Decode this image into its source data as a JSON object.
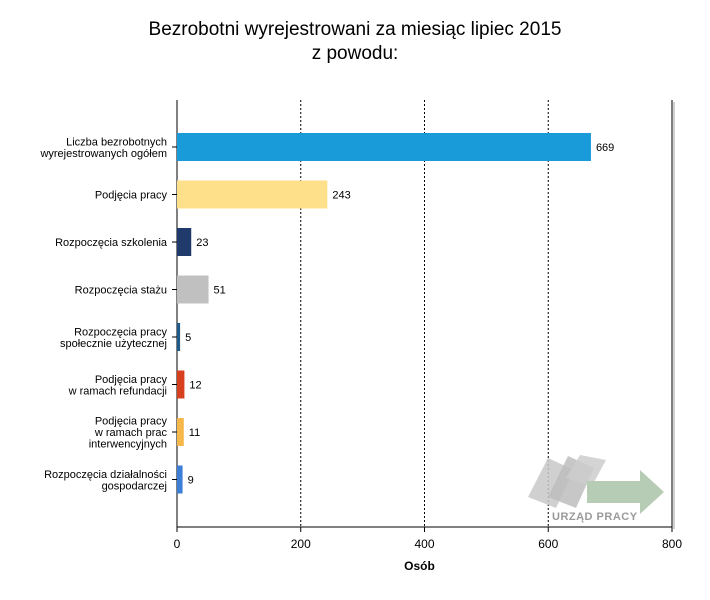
{
  "chart_data": {
    "type": "bar",
    "orientation": "horizontal",
    "title_lines": [
      "Bezrobotni wyrejestrowani za miesiąc lipiec 2015",
      "z powodu:"
    ],
    "categories": [
      [
        "Liczba bezrobotnych",
        "wyrejestrowanych ogółem"
      ],
      [
        "Podjęcia pracy"
      ],
      [
        "Rozpoczęcia szkolenia"
      ],
      [
        "Rozpoczęcia stażu"
      ],
      [
        "Rozpoczęcia pracy",
        "społecznie użytecznej"
      ],
      [
        "Podjęcia pracy",
        "w ramach refundacji"
      ],
      [
        "Podjęcia pracy",
        "w ramach prac",
        "interwencyjnych"
      ],
      [
        "Rozpoczęcia działalności",
        "gospodarczej"
      ]
    ],
    "values": [
      669,
      243,
      23,
      51,
      5,
      12,
      11,
      9
    ],
    "colors": [
      "#1a9bd9",
      "#ffe08a",
      "#1f3a6b",
      "#c0c0c0",
      "#1f5a8a",
      "#d6401e",
      "#f7b84b",
      "#3d7fd6"
    ],
    "xlabel": "Osób",
    "ylabel": "",
    "xlim": [
      0,
      800
    ],
    "xticks": [
      0,
      200,
      400,
      600,
      800
    ],
    "grid": "vertical dashed",
    "legend": "none"
  },
  "watermark": {
    "text": "URZĄD PRACY",
    "arrow_color": "#b7ccb4",
    "card_color": "#c8c8c8"
  }
}
